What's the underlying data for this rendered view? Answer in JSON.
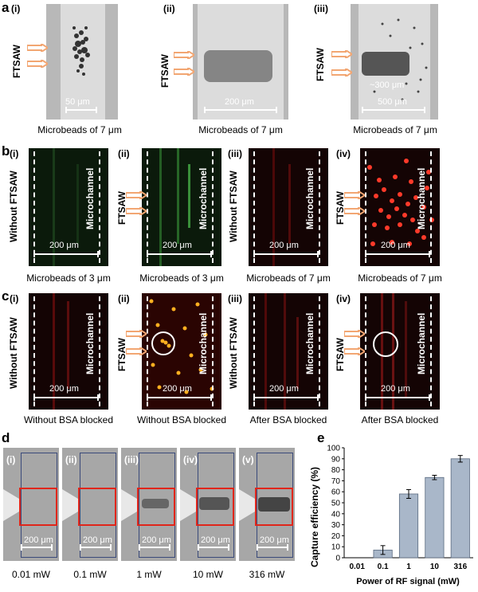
{
  "panels": {
    "a": {
      "label": "a",
      "sub": [
        "(i)",
        "(ii)",
        "(iii)"
      ],
      "side_label": "FTSAW",
      "scales": [
        "50 μm",
        "200 μm",
        "500 μm"
      ],
      "annotation": "~300 μm",
      "captions": [
        "Microbeads of 7 μm",
        "Microbeads of 7 μm",
        "Microbeads of 7 μm"
      ]
    },
    "b": {
      "label": "b",
      "sub": [
        "(i)",
        "(ii)",
        "(iii)",
        "(iv)"
      ],
      "side_labels": [
        "Without FTSAW",
        "FTSAW",
        "Without FTSAW",
        "FTSAW"
      ],
      "channel_label": "Microchannel",
      "scale": "200 μm",
      "captions": [
        "Microbeads of 3 μm",
        "Microbeads of 3 μm",
        "Microbeads of 7 μm",
        "Microbeads of 7 μm"
      ]
    },
    "c": {
      "label": "c",
      "sub": [
        "(i)",
        "(ii)",
        "(iii)",
        "(iv)"
      ],
      "side_labels": [
        "Without FTSAW",
        "FTSAW",
        "Without FTSAW",
        "FTSAW"
      ],
      "channel_label": "Microchannel",
      "scale": "200 μm",
      "captions": [
        "Without BSA blocked",
        "Without BSA blocked",
        "After BSA blocked",
        "After BSA blocked"
      ]
    },
    "d": {
      "label": "d",
      "sub": [
        "(i)",
        "(ii)",
        "(iii)",
        "(iv)",
        "(v)"
      ],
      "scale": "200 μm",
      "powers": [
        "0.01 mW",
        "0.1 mW",
        "1 mW",
        "10 mW",
        "316 mW"
      ]
    },
    "e": {
      "label": "e"
    }
  },
  "colors": {
    "arrow": "#f2a672",
    "bar": "#a9b7c9",
    "red_box": "#e0261b"
  },
  "chart_data": {
    "type": "bar",
    "title": "",
    "xlabel": "Power of RF signal (mW)",
    "ylabel": "Capture efficiency (%)",
    "categories": [
      "0.01",
      "0.1",
      "1",
      "10",
      "316"
    ],
    "values": [
      0,
      7,
      58,
      73,
      90
    ],
    "errors": [
      0,
      4,
      4,
      2,
      3
    ],
    "ylim": [
      0,
      100
    ],
    "yticks": [
      "0",
      "10",
      "20",
      "30",
      "40",
      "50",
      "60",
      "70",
      "80",
      "90",
      "100"
    ]
  }
}
